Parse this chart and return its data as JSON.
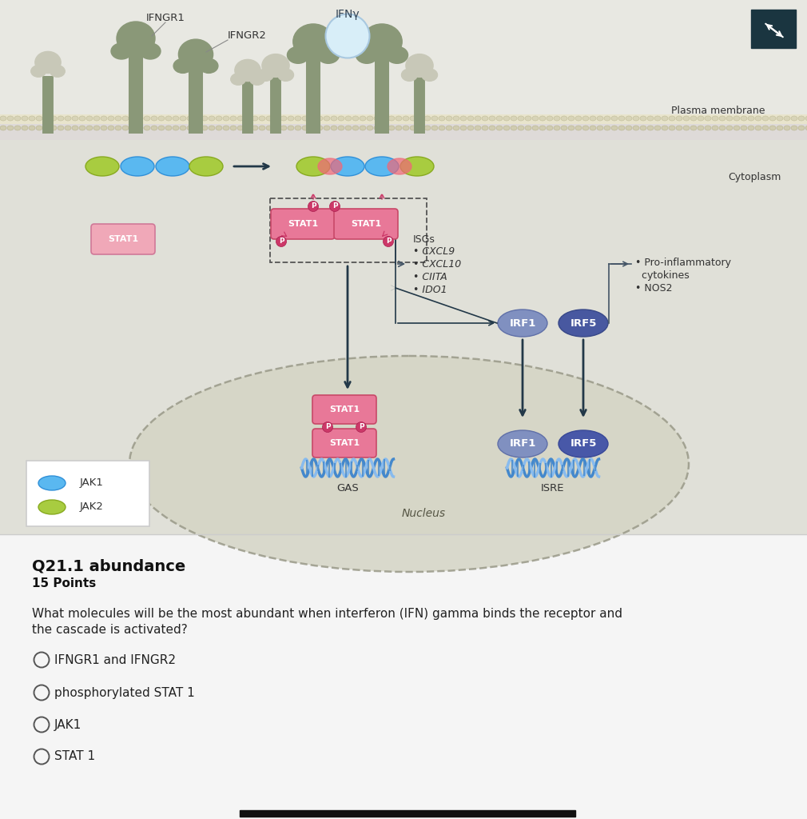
{
  "bg_color": "#f0f0ee",
  "diagram_bg": "#e8e8e2",
  "bottom_bg": "#f5f5f5",
  "membrane_bg": "#e0dcc0",
  "membrane_line_color": "#c8c4a0",
  "cytoplasm_bg": "#e2e2da",
  "nucleus_bg": "#d8d8cc",
  "receptor_color": "#8a9878",
  "receptor_side_color": "#c8c8b8",
  "ifn_color": "#d8eef8",
  "ifn_edge": "#a8c8e0",
  "jak1_color": "#5ab8f0",
  "jak2_color": "#a8cc40",
  "stat1_color": "#e87898",
  "stat1_light": "#f0a8b8",
  "p_color": "#cc3868",
  "p_text": "white",
  "irf1_color": "#8090c0",
  "irf5_color": "#4858a0",
  "dna1_color": "#4488cc",
  "dna2_color": "#88bbee",
  "arrow_color": "#223848",
  "isg_arrow_color": "#445566",
  "text_color": "#222222",
  "title_text": "Q21.1 abundance",
  "points_text": "15 Points",
  "question_text": "What molecules will be the most abundant when interferon (IFN) gamma binds the receptor and\nthe cascade is activated?",
  "options": [
    "IFNGR1 and IFNGR2",
    "phosphorylated STAT 1",
    "JAK1",
    "STAT 1"
  ],
  "plasma_membrane_label": "Plasma membrane",
  "cytoplasm_label": "Cytoplasm",
  "nucleus_label": "Nucleus",
  "legend_jak1": "JAK1",
  "legend_jak2": "JAK2",
  "expand_btn_color": "#1a3540",
  "bottom_bar_color": "#111111"
}
